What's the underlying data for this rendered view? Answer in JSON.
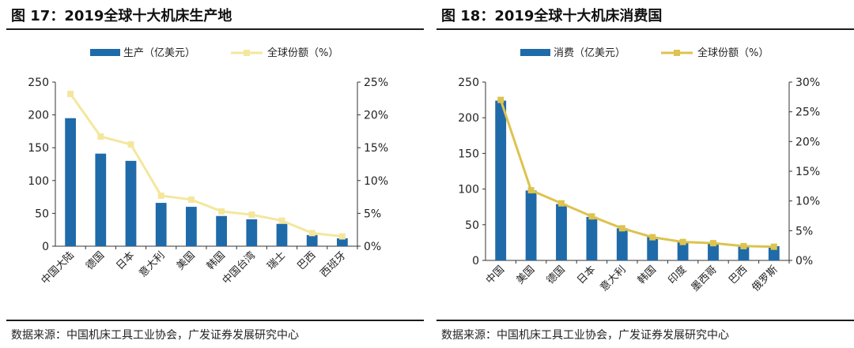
{
  "panels": [
    {
      "title": "图 17：2019全球十大机床生产地",
      "source": "数据来源：中国机床工具工业协会，广发证券发展研究中心",
      "chart_data": {
        "type": "bar",
        "categories": [
          "中国大陆",
          "德国",
          "日本",
          "意大利",
          "美国",
          "韩国",
          "中国台湾",
          "瑞士",
          "巴西",
          "西班牙"
        ],
        "series": [
          {
            "name": "生产（亿美元）",
            "type": "bar",
            "axis": "left",
            "color": "#1f6aa9",
            "values": [
              195,
              141,
              130,
              66,
              60,
              46,
              41,
              34,
              17,
              12
            ]
          },
          {
            "name": "全球份额（%）",
            "type": "line",
            "axis": "right",
            "color": "#f4e79d",
            "values": [
              23.2,
              16.7,
              15.5,
              7.7,
              7.1,
              5.3,
              4.8,
              3.9,
              2.0,
              1.5
            ]
          }
        ],
        "ylim_left": [
          0,
          250
        ],
        "yticks_left": [
          "0",
          "50",
          "100",
          "150",
          "200",
          "250"
        ],
        "ylim_right": [
          0,
          25
        ],
        "yticks_right": [
          "0%",
          "5%",
          "10%",
          "15%",
          "20%",
          "25%"
        ],
        "legend": "top-left",
        "grid": false
      }
    },
    {
      "title": "图 18：2019全球十大机床消费国",
      "source": "数据来源：中国机床工具工业协会，广发证券发展研究中心",
      "chart_data": {
        "type": "bar",
        "categories": [
          "中国",
          "美国",
          "德国",
          "日本",
          "意大利",
          "韩国",
          "印度",
          "墨西哥",
          "巴西",
          "俄罗斯"
        ],
        "series": [
          {
            "name": "消费（亿美元）",
            "type": "bar",
            "axis": "left",
            "color": "#1f6aa9",
            "values": [
              224,
              98,
              79,
              61,
              45,
              33,
              26,
              24,
              20,
              20
            ]
          },
          {
            "name": "全球份额（%）",
            "type": "line",
            "axis": "right",
            "color": "#ddc34f",
            "values": [
              27.0,
              11.8,
              9.6,
              7.4,
              5.4,
              3.9,
              3.1,
              2.9,
              2.4,
              2.3
            ]
          }
        ],
        "ylim_left": [
          0,
          250
        ],
        "yticks_left": [
          "0",
          "50",
          "100",
          "150",
          "200",
          "250"
        ],
        "ylim_right": [
          0,
          30
        ],
        "yticks_right": [
          "0%",
          "5%",
          "10%",
          "15%",
          "20%",
          "25%",
          "30%"
        ],
        "legend": "top-left",
        "grid": false
      }
    }
  ]
}
